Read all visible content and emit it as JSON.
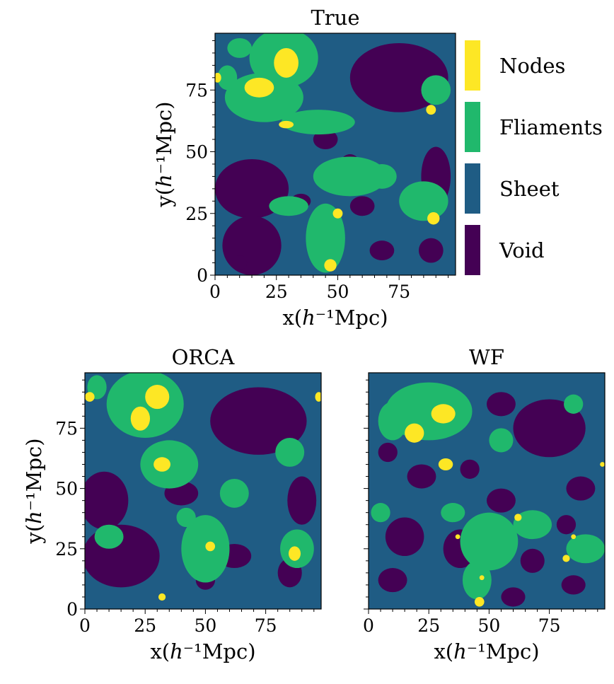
{
  "colors": {
    "void": "#440154",
    "sheet": "#1f5c84",
    "filament": "#20b86c",
    "node": "#fde725"
  },
  "legend": {
    "items": [
      {
        "label": "Nodes",
        "color": "#fde725"
      },
      {
        "label": "Fliaments",
        "color": "#20b86c"
      },
      {
        "label": "Sheet",
        "color": "#1f5c84"
      },
      {
        "label": "Void",
        "color": "#440154"
      }
    ]
  },
  "chart_data": [
    {
      "type": "heatmap",
      "title": "True",
      "xlabel": "x(h⁻¹Mpc)",
      "ylabel": "y(h⁻¹Mpc)",
      "xlim": [
        0,
        98
      ],
      "ylim": [
        0,
        98
      ],
      "xticks": [
        "0",
        "25",
        "50",
        "75"
      ],
      "yticks": [
        "0",
        "25",
        "50",
        "75"
      ],
      "classes": [
        "Void",
        "Sheet",
        "Fliaments",
        "Nodes"
      ],
      "regions": {
        "void": [
          [
            75,
            80,
            20,
            14
          ],
          [
            15,
            35,
            15,
            12
          ],
          [
            15,
            12,
            12,
            12
          ],
          [
            45,
            55,
            5,
            4
          ],
          [
            60,
            28,
            5,
            4
          ],
          [
            90,
            40,
            6,
            12
          ],
          [
            35,
            30,
            4,
            3
          ],
          [
            55,
            45,
            4,
            4
          ],
          [
            45,
            5,
            4,
            4
          ],
          [
            68,
            10,
            5,
            4
          ],
          [
            88,
            10,
            5,
            5
          ],
          [
            10,
            5,
            3,
            3
          ]
        ],
        "filament": [
          [
            28,
            88,
            14,
            12
          ],
          [
            20,
            72,
            16,
            10
          ],
          [
            55,
            40,
            15,
            8
          ],
          [
            45,
            15,
            8,
            14
          ],
          [
            85,
            30,
            10,
            8
          ],
          [
            42,
            62,
            15,
            5
          ],
          [
            30,
            28,
            8,
            4
          ],
          [
            90,
            75,
            6,
            6
          ],
          [
            5,
            80,
            4,
            5
          ],
          [
            68,
            40,
            6,
            5
          ],
          [
            10,
            92,
            5,
            4
          ]
        ],
        "node": [
          [
            29,
            86,
            5,
            6
          ],
          [
            18,
            76,
            6,
            4
          ],
          [
            29,
            61,
            3,
            1.5
          ],
          [
            50,
            25,
            2,
            2
          ],
          [
            47,
            4,
            2.5,
            2.5
          ],
          [
            89,
            23,
            2.5,
            2.5
          ],
          [
            88,
            67,
            2,
            2
          ],
          [
            1,
            80,
            1.5,
            2
          ]
        ]
      }
    },
    {
      "type": "heatmap",
      "title": "ORCA",
      "xlabel": "x(h⁻¹Mpc)",
      "ylabel": "y(h⁻¹Mpc)",
      "xlim": [
        0,
        98
      ],
      "ylim": [
        0,
        98
      ],
      "xticks": [
        "0",
        "25",
        "50",
        "75"
      ],
      "yticks": [
        "0",
        "25",
        "50",
        "75"
      ],
      "classes": [
        "Void",
        "Sheet",
        "Fliaments",
        "Nodes"
      ],
      "regions": {
        "void": [
          [
            72,
            78,
            20,
            14
          ],
          [
            15,
            22,
            16,
            13
          ],
          [
            8,
            45,
            10,
            12
          ],
          [
            40,
            48,
            7,
            5
          ],
          [
            62,
            22,
            7,
            5
          ],
          [
            90,
            45,
            6,
            10
          ],
          [
            85,
            15,
            5,
            6
          ],
          [
            30,
            60,
            5,
            4
          ],
          [
            50,
            12,
            4,
            4
          ]
        ],
        "filament": [
          [
            25,
            85,
            16,
            14
          ],
          [
            35,
            60,
            12,
            10
          ],
          [
            50,
            25,
            10,
            14
          ],
          [
            10,
            30,
            6,
            5
          ],
          [
            88,
            25,
            7,
            8
          ],
          [
            62,
            48,
            6,
            6
          ],
          [
            85,
            65,
            6,
            6
          ],
          [
            5,
            92,
            4,
            5
          ],
          [
            42,
            38,
            4,
            4
          ]
        ],
        "node": [
          [
            30,
            88,
            5,
            5
          ],
          [
            23,
            79,
            4,
            5
          ],
          [
            32,
            60,
            3.5,
            3
          ],
          [
            52,
            26,
            2,
            2
          ],
          [
            87,
            23,
            2.5,
            3
          ],
          [
            2,
            88,
            2,
            2
          ],
          [
            97,
            88,
            1.5,
            2
          ],
          [
            32,
            5,
            1.5,
            1.5
          ]
        ]
      }
    },
    {
      "type": "heatmap",
      "title": "WF",
      "xlabel": "x(h⁻¹Mpc)",
      "ylabel": "y(h⁻¹Mpc)",
      "xlim": [
        0,
        98
      ],
      "ylim": [
        0,
        98
      ],
      "xticks": [
        "0",
        "25",
        "50",
        "75"
      ],
      "yticks": [
        "0",
        "25",
        "50",
        "75"
      ],
      "classes": [
        "Void",
        "Sheet",
        "Fliaments",
        "Nodes"
      ],
      "regions": {
        "void": [
          [
            75,
            75,
            15,
            12
          ],
          [
            55,
            85,
            6,
            5
          ],
          [
            22,
            55,
            6,
            5
          ],
          [
            15,
            30,
            8,
            8
          ],
          [
            38,
            25,
            7,
            8
          ],
          [
            55,
            45,
            6,
            5
          ],
          [
            68,
            20,
            5,
            5
          ],
          [
            88,
            50,
            6,
            5
          ],
          [
            10,
            12,
            6,
            5
          ],
          [
            60,
            5,
            5,
            4
          ],
          [
            85,
            10,
            5,
            4
          ],
          [
            42,
            58,
            4,
            4
          ],
          [
            8,
            65,
            4,
            4
          ],
          [
            82,
            35,
            4,
            4
          ]
        ],
        "filament": [
          [
            25,
            82,
            18,
            12
          ],
          [
            10,
            78,
            6,
            8
          ],
          [
            50,
            28,
            12,
            12
          ],
          [
            68,
            35,
            8,
            6
          ],
          [
            90,
            25,
            8,
            6
          ],
          [
            45,
            12,
            6,
            8
          ],
          [
            35,
            40,
            5,
            4
          ],
          [
            55,
            70,
            5,
            5
          ],
          [
            85,
            85,
            4,
            4
          ],
          [
            5,
            40,
            4,
            4
          ]
        ],
        "node": [
          [
            31,
            81,
            5,
            4
          ],
          [
            19,
            73,
            4,
            4
          ],
          [
            32,
            60,
            3,
            2.5
          ],
          [
            62,
            38,
            1.5,
            1.5
          ],
          [
            82,
            21,
            1.5,
            1.5
          ],
          [
            46,
            3,
            2,
            2
          ],
          [
            47,
            13,
            1,
            1
          ],
          [
            85,
            30,
            1,
            1
          ],
          [
            37,
            30,
            1,
            1
          ],
          [
            97,
            60,
            1,
            1
          ]
        ]
      }
    }
  ]
}
